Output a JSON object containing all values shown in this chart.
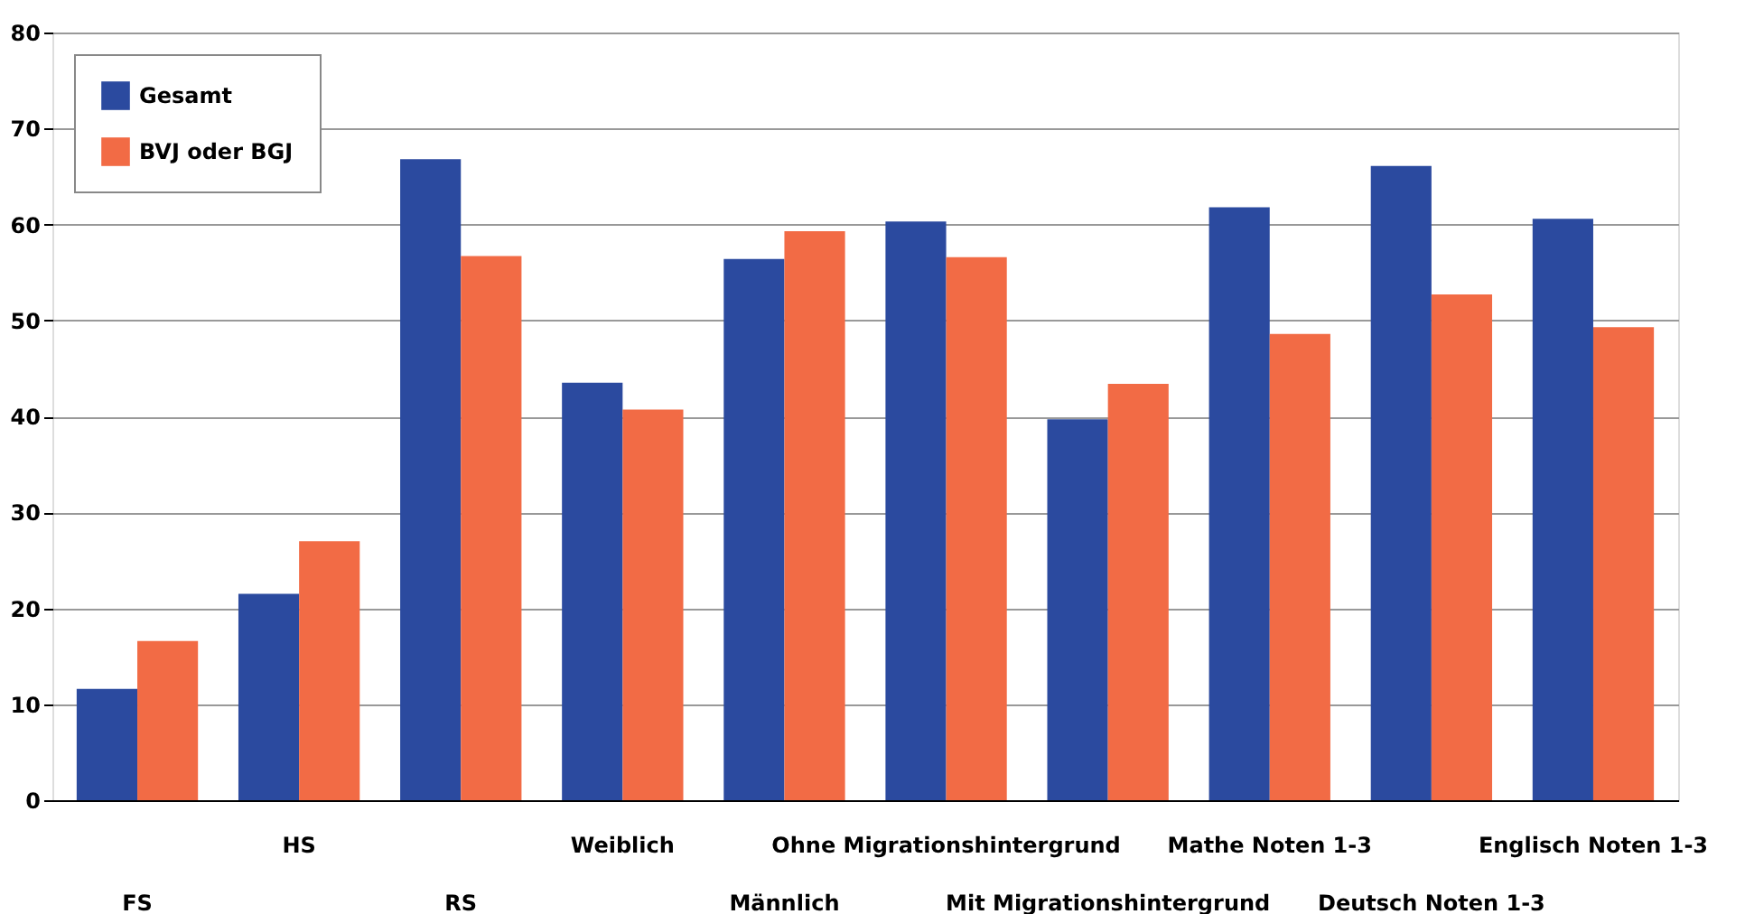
{
  "chart_data": {
    "type": "bar",
    "categories": [
      "FS",
      "HS",
      "RS",
      "Weiblich",
      "Männlich",
      "Ohne Migrationshintergrund",
      "Mit Migrationshintergrund",
      "Mathe Noten 1-3",
      "Deutsch Noten 1-3",
      "Englisch Noten 1-3"
    ],
    "series": [
      {
        "name": "Gesamt",
        "color": "#2b4a9f",
        "values": [
          11.6,
          21.5,
          66.8,
          43.5,
          56.4,
          60.3,
          39.7,
          61.8,
          66.1,
          60.6
        ]
      },
      {
        "name": "BVJ oder BGJ",
        "color": "#f26b45",
        "values": [
          16.6,
          27.0,
          56.7,
          40.7,
          59.3,
          56.6,
          43.4,
          48.6,
          52.7,
          49.3
        ]
      }
    ],
    "ylim": [
      0,
      80
    ],
    "yticks": [
      0,
      10,
      20,
      30,
      40,
      50,
      60,
      70,
      80
    ],
    "grid": "y",
    "legend": "top left"
  }
}
